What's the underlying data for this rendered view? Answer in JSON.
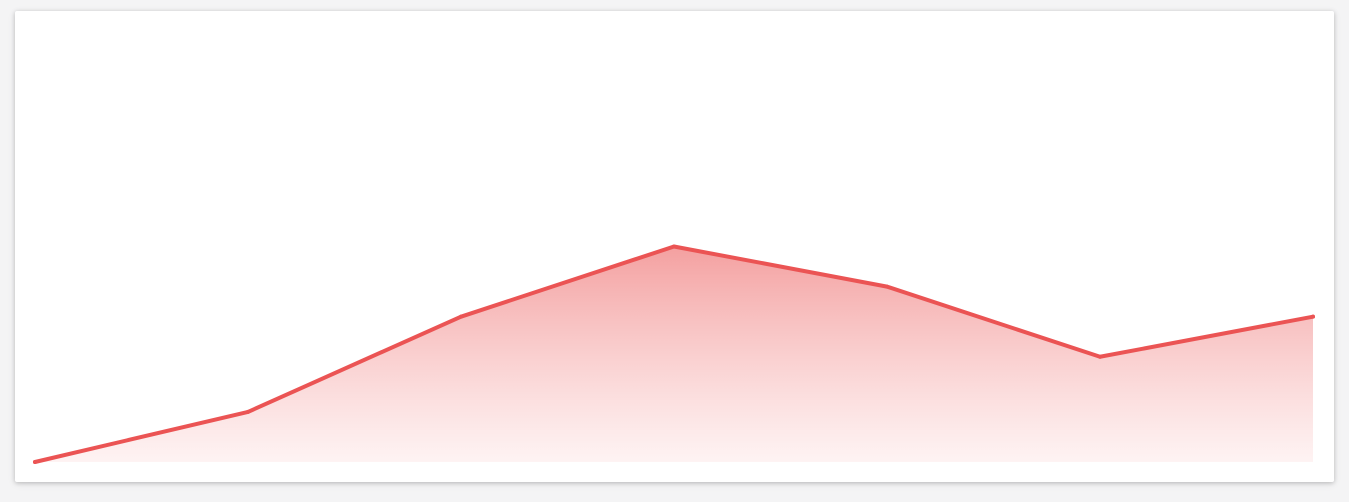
{
  "chart_data": {
    "type": "area",
    "x": [
      0,
      1,
      2,
      3,
      4,
      5,
      6
    ],
    "values": [
      0,
      10,
      29,
      43,
      35,
      21,
      29
    ],
    "ylim": [
      0,
      90
    ],
    "grid": false,
    "legend": "none",
    "colors": {
      "line": "#eb5454",
      "fill_top": "#f08080",
      "fill_bottom": "#fde9e9",
      "card": "#ffffff",
      "background": "#f4f4f5"
    }
  }
}
